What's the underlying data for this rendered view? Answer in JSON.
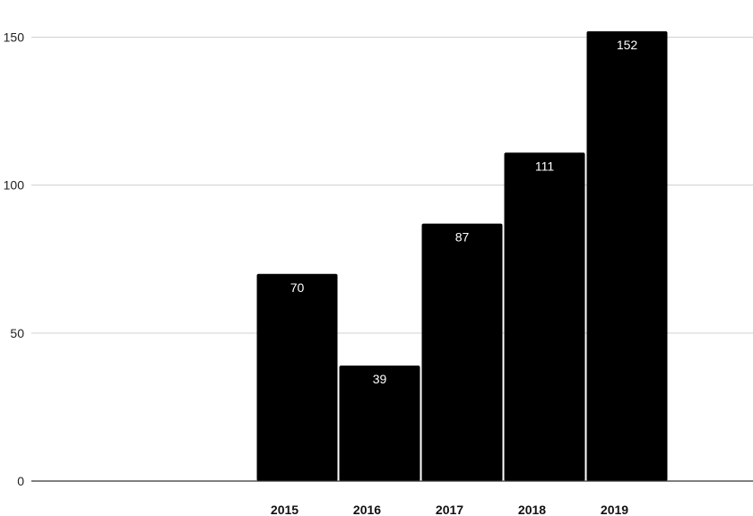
{
  "chart_data": {
    "type": "bar",
    "title": "",
    "xlabel": "",
    "ylabel": "",
    "categories": [
      "2015",
      "2016",
      "2017",
      "2018",
      "2019"
    ],
    "values": [
      70,
      39,
      87,
      111,
      152
    ],
    "ylim": [
      0,
      160
    ],
    "yticks": [
      0,
      50,
      100,
      150
    ],
    "grid": true,
    "legend": "none",
    "bar_color": "#000000",
    "data_label_color": "#ffffff",
    "gridline_color": "#d0d0d0"
  }
}
